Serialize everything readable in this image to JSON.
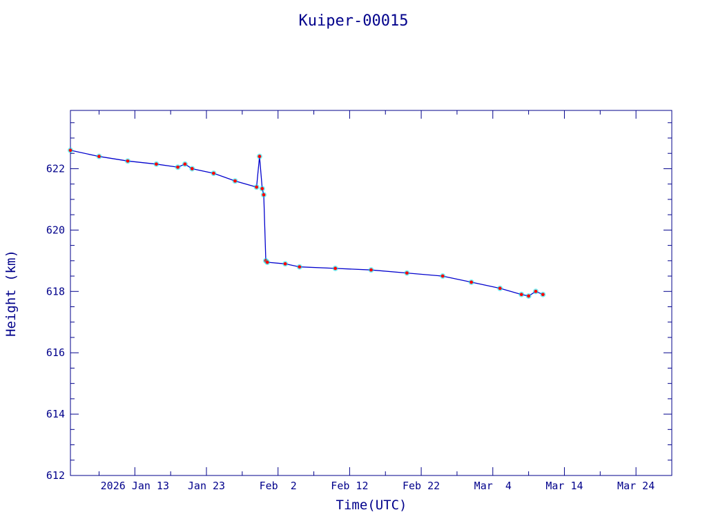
{
  "chart_data": {
    "type": "line",
    "title": "Kuiper-00015",
    "xlabel": "Time(UTC)",
    "ylabel": "Height (km)",
    "colors": {
      "axis": "#00008b",
      "line": "#0000cd",
      "marker": "#ff0000",
      "highlight": "#00e5ee",
      "background": "#ffffff"
    },
    "x_axis": {
      "type": "date",
      "range": [
        "2026-01-04",
        "2026-03-29"
      ],
      "ticks": [
        {
          "date": "2026-01-13",
          "label": "2026 Jan 13"
        },
        {
          "date": "2026-01-23",
          "label": "Jan 23"
        },
        {
          "date": "2026-02-02",
          "label": "Feb  2"
        },
        {
          "date": "2026-02-12",
          "label": "Feb 12"
        },
        {
          "date": "2026-02-22",
          "label": "Feb 22"
        },
        {
          "date": "2026-03-04",
          "label": "Mar  4"
        },
        {
          "date": "2026-03-14",
          "label": "Mar 14"
        },
        {
          "date": "2026-03-24",
          "label": "Mar 24"
        }
      ]
    },
    "y_axis": {
      "range": [
        612,
        623.9
      ],
      "ticks": [
        612,
        614,
        616,
        618,
        620,
        622
      ],
      "tick_labels": [
        "612",
        "614",
        "616",
        "618",
        "620",
        "622"
      ]
    },
    "series": [
      {
        "x": [
          "2026-01-04T00:00",
          "2026-01-08T00:00",
          "2026-01-12T00:00",
          "2026-01-16T00:00",
          "2026-01-19T00:00",
          "2026-01-20T00:00",
          "2026-01-21T00:00",
          "2026-01-24T00:00",
          "2026-01-27T00:00",
          "2026-01-30T00:00",
          "2026-01-30T10:00",
          "2026-01-30T19:00",
          "2026-01-31T00:00",
          "2026-01-31T07:00",
          "2026-01-31T12:00",
          "2026-02-03T00:00",
          "2026-02-05T00:00",
          "2026-02-10T00:00",
          "2026-02-15T00:00",
          "2026-02-20T00:00",
          "2026-02-25T00:00",
          "2026-03-01T00:00",
          "2026-03-05T00:00",
          "2026-03-08T00:00",
          "2026-03-09T00:00",
          "2026-03-10T00:00",
          "2026-03-11T00:00"
        ],
        "y": [
          622.6,
          622.4,
          622.25,
          622.15,
          622.05,
          622.15,
          622.0,
          621.85,
          621.6,
          621.4,
          622.4,
          621.35,
          621.15,
          619.0,
          618.95,
          618.9,
          618.8,
          618.75,
          618.7,
          618.6,
          618.5,
          618.3,
          618.1,
          617.9,
          617.85,
          618.0,
          617.9
        ]
      }
    ],
    "grid": false,
    "legend": "none"
  }
}
